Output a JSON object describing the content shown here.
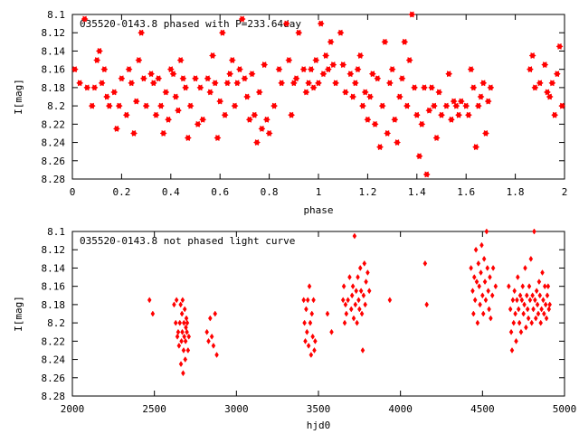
{
  "chart_data": [
    {
      "type": "scatter",
      "title": "035520-0143.8 phased with P=233.64day",
      "xlabel": "phase",
      "ylabel": "I[mag]",
      "xlim": [
        0,
        2
      ],
      "ylim": [
        8.1,
        8.28
      ],
      "y_inverted": true,
      "grid": false,
      "marker": "star",
      "color": "#ff0000",
      "x_ticks": [
        "0",
        "0.2",
        "0.4",
        "0.6",
        "0.8",
        "1",
        "1.2",
        "1.4",
        "1.6",
        "1.8",
        "2"
      ],
      "y_ticks": [
        "8.1",
        "8.12",
        "8.14",
        "8.16",
        "8.18",
        "8.2",
        "8.22",
        "8.24",
        "8.26",
        "8.28"
      ],
      "points": [
        [
          0.01,
          8.16
        ],
        [
          0.03,
          8.175
        ],
        [
          0.05,
          8.105
        ],
        [
          0.06,
          8.18
        ],
        [
          0.08,
          8.2
        ],
        [
          0.09,
          8.18
        ],
        [
          0.1,
          8.15
        ],
        [
          0.11,
          8.14
        ],
        [
          0.12,
          8.175
        ],
        [
          0.13,
          8.16
        ],
        [
          0.14,
          8.19
        ],
        [
          0.15,
          8.2
        ],
        [
          0.17,
          8.185
        ],
        [
          0.18,
          8.225
        ],
        [
          0.19,
          8.2
        ],
        [
          0.2,
          8.17
        ],
        [
          0.22,
          8.21
        ],
        [
          0.23,
          8.16
        ],
        [
          0.24,
          8.175
        ],
        [
          0.25,
          8.23
        ],
        [
          0.26,
          8.195
        ],
        [
          0.27,
          8.15
        ],
        [
          0.28,
          8.12
        ],
        [
          0.29,
          8.17
        ],
        [
          0.3,
          8.2
        ],
        [
          0.32,
          8.165
        ],
        [
          0.33,
          8.175
        ],
        [
          0.34,
          8.21
        ],
        [
          0.35,
          8.17
        ],
        [
          0.36,
          8.2
        ],
        [
          0.37,
          8.23
        ],
        [
          0.38,
          8.185
        ],
        [
          0.39,
          8.215
        ],
        [
          0.4,
          8.16
        ],
        [
          0.41,
          8.165
        ],
        [
          0.42,
          8.19
        ],
        [
          0.43,
          8.205
        ],
        [
          0.44,
          8.15
        ],
        [
          0.45,
          8.17
        ],
        [
          0.46,
          8.18
        ],
        [
          0.47,
          8.235
        ],
        [
          0.48,
          8.2
        ],
        [
          0.5,
          8.17
        ],
        [
          0.51,
          8.22
        ],
        [
          0.52,
          8.18
        ],
        [
          0.53,
          8.215
        ],
        [
          0.55,
          8.17
        ],
        [
          0.56,
          8.185
        ],
        [
          0.57,
          8.145
        ],
        [
          0.58,
          8.175
        ],
        [
          0.59,
          8.235
        ],
        [
          0.6,
          8.195
        ],
        [
          0.61,
          8.12
        ],
        [
          0.62,
          8.21
        ],
        [
          0.63,
          8.175
        ],
        [
          0.64,
          8.165
        ],
        [
          0.65,
          8.15
        ],
        [
          0.66,
          8.2
        ],
        [
          0.67,
          8.175
        ],
        [
          0.68,
          8.16
        ],
        [
          0.69,
          8.105
        ],
        [
          0.7,
          8.17
        ],
        [
          0.71,
          8.19
        ],
        [
          0.72,
          8.215
        ],
        [
          0.73,
          8.165
        ],
        [
          0.74,
          8.21
        ],
        [
          0.75,
          8.24
        ],
        [
          0.76,
          8.185
        ],
        [
          0.77,
          8.225
        ],
        [
          0.78,
          8.155
        ],
        [
          0.79,
          8.215
        ],
        [
          0.8,
          8.23
        ],
        [
          0.82,
          8.2
        ],
        [
          0.84,
          8.16
        ],
        [
          0.85,
          8.175
        ],
        [
          0.87,
          8.11
        ],
        [
          0.88,
          8.15
        ],
        [
          0.89,
          8.21
        ],
        [
          0.9,
          8.175
        ],
        [
          0.91,
          8.17
        ],
        [
          0.92,
          8.12
        ],
        [
          0.94,
          8.16
        ],
        [
          0.95,
          8.185
        ],
        [
          0.96,
          8.175
        ],
        [
          0.97,
          8.16
        ],
        [
          0.98,
          8.18
        ],
        [
          0.99,
          8.15
        ],
        [
          1.0,
          8.175
        ],
        [
          1.01,
          8.11
        ],
        [
          1.02,
          8.165
        ],
        [
          1.03,
          8.145
        ],
        [
          1.04,
          8.16
        ],
        [
          1.05,
          8.13
        ],
        [
          1.06,
          8.155
        ],
        [
          1.07,
          8.175
        ],
        [
          1.09,
          8.12
        ],
        [
          1.1,
          8.155
        ],
        [
          1.11,
          8.185
        ],
        [
          1.13,
          8.165
        ],
        [
          1.14,
          8.19
        ],
        [
          1.15,
          8.175
        ],
        [
          1.16,
          8.16
        ],
        [
          1.17,
          8.145
        ],
        [
          1.18,
          8.2
        ],
        [
          1.19,
          8.185
        ],
        [
          1.2,
          8.215
        ],
        [
          1.21,
          8.19
        ],
        [
          1.22,
          8.165
        ],
        [
          1.23,
          8.22
        ],
        [
          1.24,
          8.17
        ],
        [
          1.25,
          8.245
        ],
        [
          1.26,
          8.2
        ],
        [
          1.27,
          8.13
        ],
        [
          1.28,
          8.23
        ],
        [
          1.29,
          8.175
        ],
        [
          1.3,
          8.16
        ],
        [
          1.31,
          8.215
        ],
        [
          1.32,
          8.24
        ],
        [
          1.33,
          8.19
        ],
        [
          1.34,
          8.17
        ],
        [
          1.35,
          8.13
        ],
        [
          1.36,
          8.2
        ],
        [
          1.37,
          8.15
        ],
        [
          1.38,
          8.1
        ],
        [
          1.39,
          8.18
        ],
        [
          1.4,
          8.21
        ],
        [
          1.41,
          8.255
        ],
        [
          1.42,
          8.22
        ],
        [
          1.43,
          8.18
        ],
        [
          1.44,
          8.275
        ],
        [
          1.45,
          8.205
        ],
        [
          1.46,
          8.18
        ],
        [
          1.47,
          8.2
        ],
        [
          1.48,
          8.235
        ],
        [
          1.49,
          8.185
        ],
        [
          1.5,
          8.21
        ],
        [
          1.52,
          8.2
        ],
        [
          1.53,
          8.165
        ],
        [
          1.54,
          8.215
        ],
        [
          1.55,
          8.195
        ],
        [
          1.56,
          8.2
        ],
        [
          1.57,
          8.21
        ],
        [
          1.58,
          8.195
        ],
        [
          1.6,
          8.2
        ],
        [
          1.61,
          8.21
        ],
        [
          1.62,
          8.16
        ],
        [
          1.63,
          8.18
        ],
        [
          1.64,
          8.245
        ],
        [
          1.65,
          8.2
        ],
        [
          1.66,
          8.19
        ],
        [
          1.67,
          8.175
        ],
        [
          1.68,
          8.23
        ],
        [
          1.69,
          8.195
        ],
        [
          1.7,
          8.18
        ],
        [
          1.86,
          8.16
        ],
        [
          1.87,
          8.145
        ],
        [
          1.88,
          8.18
        ],
        [
          1.9,
          8.175
        ],
        [
          1.92,
          8.155
        ],
        [
          1.93,
          8.185
        ],
        [
          1.94,
          8.19
        ],
        [
          1.95,
          8.175
        ],
        [
          1.96,
          8.21
        ],
        [
          1.97,
          8.165
        ],
        [
          1.98,
          8.135
        ],
        [
          1.99,
          8.2
        ]
      ]
    },
    {
      "type": "scatter",
      "title": "035520-0143.8 not phased light curve",
      "xlabel": "hjd0",
      "ylabel": "I[mag]",
      "xlim": [
        2000,
        5000
      ],
      "ylim": [
        8.1,
        8.28
      ],
      "y_inverted": true,
      "grid": false,
      "marker": "diamond",
      "color": "#ff0000",
      "x_ticks": [
        "2000",
        "2500",
        "3000",
        "3500",
        "4000",
        "4500",
        "5000"
      ],
      "y_ticks": [
        "8.1",
        "8.12",
        "8.14",
        "8.16",
        "8.18",
        "8.2",
        "8.22",
        "8.24",
        "8.26",
        "8.28"
      ],
      "points": [
        [
          2470,
          8.175
        ],
        [
          2490,
          8.19
        ],
        [
          2620,
          8.18
        ],
        [
          2630,
          8.2
        ],
        [
          2635,
          8.175
        ],
        [
          2640,
          8.215
        ],
        [
          2645,
          8.21
        ],
        [
          2650,
          8.225
        ],
        [
          2655,
          8.2
        ],
        [
          2660,
          8.18
        ],
        [
          2662,
          8.245
        ],
        [
          2665,
          8.22
        ],
        [
          2668,
          8.19
        ],
        [
          2670,
          8.21
        ],
        [
          2672,
          8.175
        ],
        [
          2675,
          8.255
        ],
        [
          2678,
          8.23
        ],
        [
          2680,
          8.2
        ],
        [
          2682,
          8.215
        ],
        [
          2685,
          8.185
        ],
        [
          2688,
          8.24
        ],
        [
          2690,
          8.22
        ],
        [
          2692,
          8.205
        ],
        [
          2695,
          8.195
        ],
        [
          2698,
          8.21
        ],
        [
          2700,
          8.2
        ],
        [
          2705,
          8.23
        ],
        [
          2710,
          8.215
        ],
        [
          2820,
          8.21
        ],
        [
          2830,
          8.22
        ],
        [
          2840,
          8.195
        ],
        [
          2850,
          8.215
        ],
        [
          2860,
          8.225
        ],
        [
          2870,
          8.19
        ],
        [
          2880,
          8.235
        ],
        [
          3410,
          8.175
        ],
        [
          3415,
          8.2
        ],
        [
          3420,
          8.22
        ],
        [
          3425,
          8.185
        ],
        [
          3430,
          8.21
        ],
        [
          3435,
          8.175
        ],
        [
          3440,
          8.225
        ],
        [
          3445,
          8.16
        ],
        [
          3450,
          8.2
        ],
        [
          3455,
          8.235
        ],
        [
          3460,
          8.19
        ],
        [
          3465,
          8.215
        ],
        [
          3470,
          8.175
        ],
        [
          3475,
          8.23
        ],
        [
          3480,
          8.22
        ],
        [
          3555,
          8.19
        ],
        [
          3580,
          8.21
        ],
        [
          3650,
          8.175
        ],
        [
          3655,
          8.16
        ],
        [
          3660,
          8.2
        ],
        [
          3665,
          8.18
        ],
        [
          3670,
          8.19
        ],
        [
          3680,
          8.175
        ],
        [
          3690,
          8.15
        ],
        [
          3700,
          8.185
        ],
        [
          3705,
          8.17
        ],
        [
          3710,
          8.16
        ],
        [
          3715,
          8.195
        ],
        [
          3720,
          8.105
        ],
        [
          3725,
          8.18
        ],
        [
          3730,
          8.165
        ],
        [
          3735,
          8.2
        ],
        [
          3740,
          8.15
        ],
        [
          3745,
          8.175
        ],
        [
          3750,
          8.185
        ],
        [
          3755,
          8.14
        ],
        [
          3760,
          8.165
        ],
        [
          3765,
          8.19
        ],
        [
          3770,
          8.23
        ],
        [
          3775,
          8.17
        ],
        [
          3780,
          8.135
        ],
        [
          3785,
          8.18
        ],
        [
          3790,
          8.155
        ],
        [
          3800,
          8.145
        ],
        [
          3810,
          8.165
        ],
        [
          3935,
          8.175
        ],
        [
          4150,
          8.135
        ],
        [
          4160,
          8.18
        ],
        [
          4430,
          8.14
        ],
        [
          4440,
          8.165
        ],
        [
          4445,
          8.19
        ],
        [
          4450,
          8.15
        ],
        [
          4455,
          8.175
        ],
        [
          4460,
          8.12
        ],
        [
          4465,
          8.155
        ],
        [
          4470,
          8.2
        ],
        [
          4475,
          8.135
        ],
        [
          4480,
          8.16
        ],
        [
          4485,
          8.18
        ],
        [
          4490,
          8.145
        ],
        [
          4495,
          8.115
        ],
        [
          4500,
          8.17
        ],
        [
          4505,
          8.19
        ],
        [
          4510,
          8.13
        ],
        [
          4515,
          8.155
        ],
        [
          4520,
          8.175
        ],
        [
          4525,
          8.1
        ],
        [
          4530,
          8.14
        ],
        [
          4535,
          8.165
        ],
        [
          4540,
          8.185
        ],
        [
          4545,
          8.15
        ],
        [
          4550,
          8.195
        ],
        [
          4560,
          8.17
        ],
        [
          4565,
          8.14
        ],
        [
          4580,
          8.16
        ],
        [
          4660,
          8.16
        ],
        [
          4670,
          8.185
        ],
        [
          4675,
          8.21
        ],
        [
          4680,
          8.23
        ],
        [
          4685,
          8.175
        ],
        [
          4690,
          8.2
        ],
        [
          4695,
          8.165
        ],
        [
          4700,
          8.19
        ],
        [
          4705,
          8.22
        ],
        [
          4710,
          8.175
        ],
        [
          4715,
          8.15
        ],
        [
          4720,
          8.185
        ],
        [
          4725,
          8.2
        ],
        [
          4730,
          8.17
        ],
        [
          4735,
          8.21
        ],
        [
          4740,
          8.175
        ],
        [
          4745,
          8.16
        ],
        [
          4750,
          8.19
        ],
        [
          4755,
          8.18
        ],
        [
          4760,
          8.14
        ],
        [
          4765,
          8.205
        ],
        [
          4770,
          8.17
        ],
        [
          4775,
          8.185
        ],
        [
          4780,
          8.195
        ],
        [
          4785,
          8.16
        ],
        [
          4790,
          8.175
        ],
        [
          4795,
          8.13
        ],
        [
          4800,
          8.2
        ],
        [
          4805,
          8.17
        ],
        [
          4810,
          8.185
        ],
        [
          4815,
          8.1
        ],
        [
          4820,
          8.175
        ],
        [
          4825,
          8.195
        ],
        [
          4830,
          8.165
        ],
        [
          4835,
          8.18
        ],
        [
          4840,
          8.19
        ],
        [
          4845,
          8.155
        ],
        [
          4850,
          8.17
        ],
        [
          4855,
          8.2
        ],
        [
          4860,
          8.185
        ],
        [
          4865,
          8.145
        ],
        [
          4870,
          8.175
        ],
        [
          4875,
          8.19
        ],
        [
          4880,
          8.16
        ],
        [
          4885,
          8.18
        ],
        [
          4890,
          8.195
        ],
        [
          4895,
          8.17
        ],
        [
          4900,
          8.16
        ],
        [
          4905,
          8.185
        ],
        [
          4910,
          8.18
        ]
      ]
    }
  ]
}
